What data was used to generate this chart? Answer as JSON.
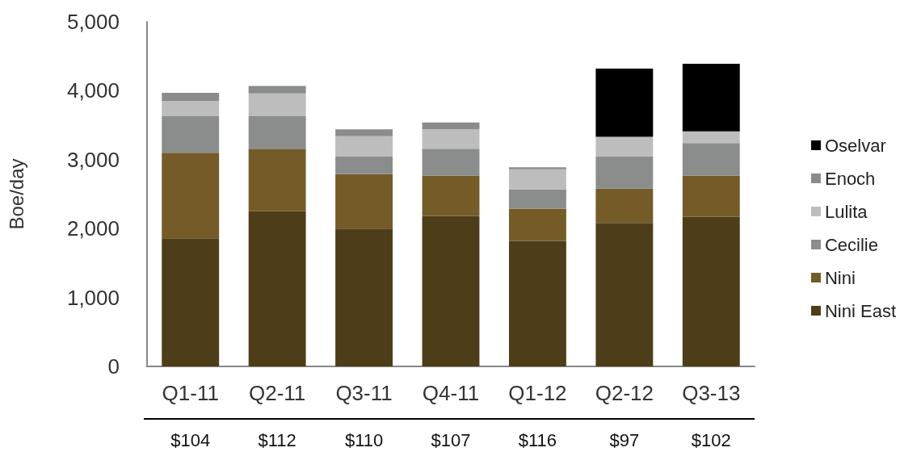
{
  "chart_data": {
    "type": "bar",
    "stacked": true,
    "ylabel": "Boe/day",
    "categories": [
      "Q1-11",
      "Q2-11",
      "Q3-11",
      "Q4-11",
      "Q1-12",
      "Q2-12",
      "Q3-13"
    ],
    "series": [
      {
        "name": "Nini East",
        "color": "#4d3e19",
        "values": [
          1860,
          2250,
          2000,
          2180,
          1820,
          2080,
          2170
        ]
      },
      {
        "name": "Nini",
        "color": "#745b28",
        "values": [
          1240,
          900,
          790,
          590,
          470,
          500,
          600
        ]
      },
      {
        "name": "Cecilie",
        "color": "#8b8d8c",
        "values": [
          530,
          480,
          260,
          390,
          280,
          470,
          470
        ]
      },
      {
        "name": "Lulita",
        "color": "#bdbdbd",
        "values": [
          220,
          330,
          290,
          280,
          290,
          280,
          170
        ]
      },
      {
        "name": "Enoch",
        "color": "#8a8c8b",
        "values": [
          120,
          110,
          100,
          100,
          30,
          null,
          null
        ]
      },
      {
        "name": "Oselvar",
        "color": "#000000",
        "values": [
          null,
          null,
          null,
          null,
          null,
          990,
          980
        ]
      }
    ],
    "ylim": [
      0,
      5000
    ],
    "yticks": [
      {
        "value": 0,
        "label": "0"
      },
      {
        "value": 1000,
        "label": "1,000"
      },
      {
        "value": 2000,
        "label": "2,000"
      },
      {
        "value": 3000,
        "label": "3,000"
      },
      {
        "value": 4000,
        "label": "4,000"
      },
      {
        "value": 5000,
        "label": "5,000"
      }
    ],
    "grid": false,
    "legend": "right",
    "annotations": [
      "$104",
      "$112",
      "$110",
      "$107",
      "$116",
      "$97",
      "$102"
    ]
  }
}
